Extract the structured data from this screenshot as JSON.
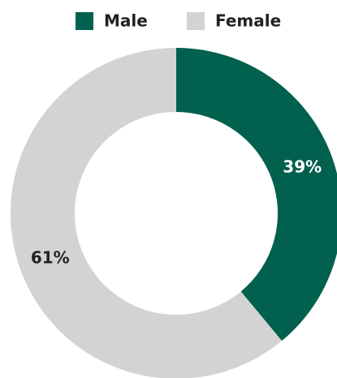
{
  "chart_data": {
    "type": "donut",
    "categories": [
      "Male",
      "Female"
    ],
    "values": [
      39,
      61
    ],
    "value_labels": [
      "39%",
      "61%"
    ],
    "colors": [
      "#02604e",
      "#d3d3d3"
    ],
    "label_colors": [
      "#ffffff",
      "#222222"
    ],
    "legend": "top"
  }
}
